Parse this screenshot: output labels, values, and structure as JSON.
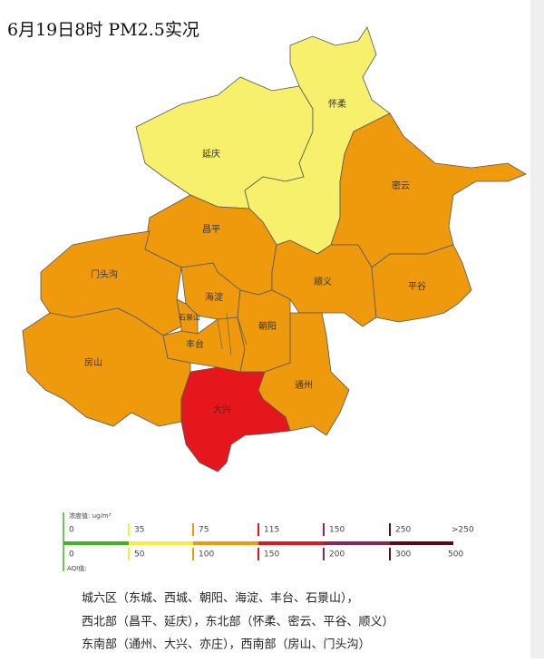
{
  "title": "6月19日8时 PM2.5实况",
  "districts": [
    {
      "label": "延庆",
      "color": "#f7f06c"
    },
    {
      "label": "怀柔",
      "color": "#f7f06c"
    },
    {
      "label": "密云",
      "color": "#ef9a0d"
    },
    {
      "label": "昌平",
      "color": "#ef9a0d"
    },
    {
      "label": "门头沟",
      "color": "#ef9a0d"
    },
    {
      "label": "房山",
      "color": "#ef9a0d"
    },
    {
      "label": "顺义",
      "color": "#ef9a0d"
    },
    {
      "label": "平谷",
      "color": "#ef9a0d"
    },
    {
      "label": "通州",
      "color": "#ef9a0d"
    },
    {
      "label": "大兴",
      "color": "#e5171c"
    },
    {
      "label": "海淀",
      "color": "#ef9a0d"
    },
    {
      "label": "石景山",
      "color": "#ef9a0d"
    },
    {
      "label": "丰台",
      "color": "#ef9a0d"
    },
    {
      "label": "朝阳",
      "color": "#ef9a0d"
    }
  ],
  "legend": {
    "concentration_label": "浓度值:   ug/m³",
    "aqi_label": "AQI值:",
    "colors": [
      "#3cb521",
      "#f5ee3a",
      "#ef9a0d",
      "#e5171c",
      "#8e2356",
      "#5a0a14"
    ],
    "concentration_ticks": [
      0,
      35,
      75,
      115,
      150,
      250,
      ">250"
    ],
    "aqi_ticks": [
      0,
      50,
      100,
      150,
      200,
      300,
      500
    ]
  },
  "notes": [
    "城六区（东城、西城、朝阳、海淀、丰台、石景山），",
    "西北部（昌平、延庆），东北部（怀柔、密云、平谷、顺义）",
    "东南部（通州、大兴、亦庄），西南部（房山、门头沟）"
  ]
}
